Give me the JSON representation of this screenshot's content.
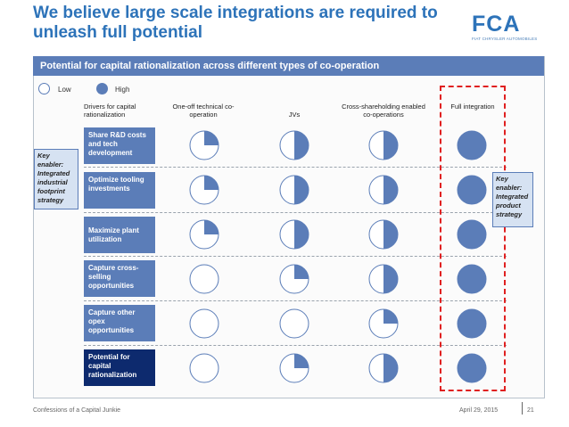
{
  "title": "We believe large scale integrations are required to unleash full potential",
  "logo": {
    "letters": "FCA",
    "subtitle": "FIAT CHRYSLER AUTOMOBILES"
  },
  "banner": "Potential for capital rationalization across different types of co-operation",
  "legend": {
    "low": "Low",
    "high": "High"
  },
  "columns": [
    {
      "label": "Drivers for capital rationalization"
    },
    {
      "label": "One-off technical co-operation"
    },
    {
      "label": "JVs"
    },
    {
      "label": "Cross-shareholding enabled co-operations"
    },
    {
      "label": "Full integration"
    }
  ],
  "rows": [
    {
      "driver": "Share R&D costs and tech development",
      "levels": [
        0.25,
        0.5,
        0.5,
        1.0
      ]
    },
    {
      "driver": "Optimize tooling investments",
      "levels": [
        0.25,
        0.5,
        0.5,
        1.0
      ]
    },
    {
      "driver": "Maximize plant utilization",
      "levels": [
        0.25,
        0.5,
        0.5,
        1.0
      ]
    },
    {
      "driver": "Capture cross-selling opportunities",
      "levels": [
        0,
        0.25,
        0.5,
        1.0
      ]
    },
    {
      "driver": "Capture other opex opportunities",
      "levels": [
        0,
        0,
        0.25,
        1.0
      ]
    },
    {
      "driver": "Potential for capital rationalization",
      "levels": [
        0,
        0.25,
        0.5,
        1.0
      ]
    }
  ],
  "callouts": {
    "left": "Key enabler: Integrated industrial footprint strategy",
    "right": "Key enabler: Integrated product strategy"
  },
  "footer": {
    "source": "Confessions of a Capital Junkie",
    "date": "April 29, 2015",
    "page": "21"
  },
  "colors": {
    "brand": "#2d73b9",
    "fill": "#5b7db8",
    "dark": "#0d2a6e",
    "highlight": "#e02020"
  }
}
